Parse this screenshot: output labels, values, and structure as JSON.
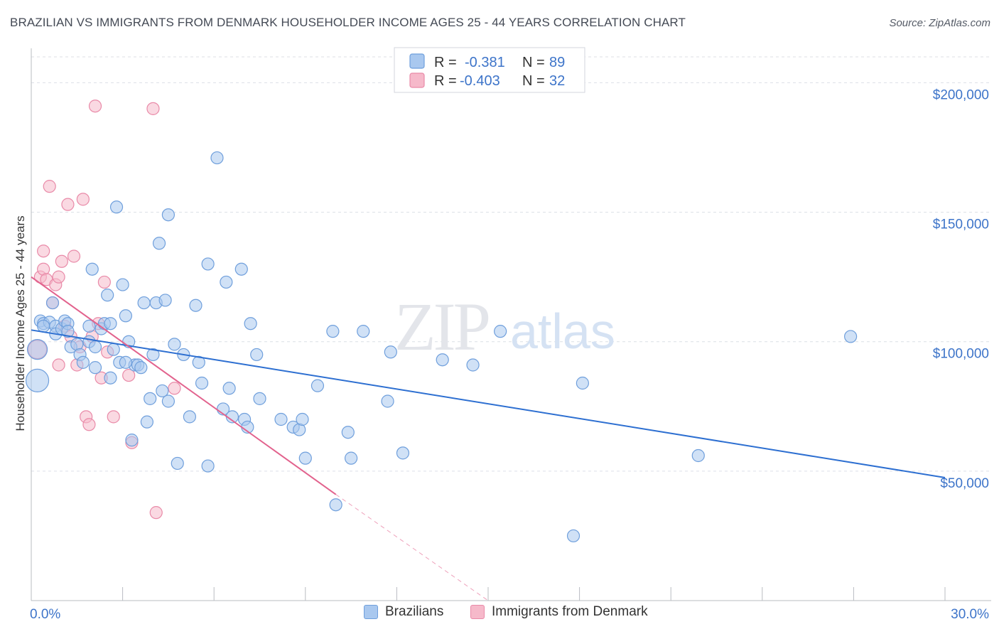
{
  "header": {
    "title": "BRAZILIAN VS IMMIGRANTS FROM DENMARK HOUSEHOLDER INCOME AGES 25 - 44 YEARS CORRELATION CHART",
    "source": "Source: ZipAtlas.com"
  },
  "watermark": {
    "zip": "ZIP",
    "atlas": "atlas"
  },
  "colors": {
    "blue_fill": "#a9c8ef",
    "blue_stroke": "#6f9fdc",
    "blue_line": "#2d6fd1",
    "pink_fill": "#f6b9ca",
    "pink_stroke": "#e98aa8",
    "pink_line": "#e2628d",
    "label_blue": "#3d74c9",
    "grid": "#dcdfe6"
  },
  "legend": {
    "rows": [
      {
        "r_label": "R =",
        "r_value": "-0.381",
        "n_label": "N =",
        "n_value": "89"
      },
      {
        "r_label": "R =",
        "r_value": "-0.403",
        "n_label": "N =",
        "n_value": "32"
      }
    ]
  },
  "bottom_legend": {
    "brazilians": "Brazilians",
    "denmark": "Immigrants from Denmark"
  },
  "chart_data": {
    "type": "scatter",
    "title": "BRAZILIAN VS IMMIGRANTS FROM DENMARK HOUSEHOLDER INCOME AGES 25 - 44 YEARS CORRELATION CHART",
    "xlabel": "",
    "ylabel": "Householder Income Ages 25 - 44 years",
    "xlim": [
      0,
      30
    ],
    "ylim": [
      0,
      210000
    ],
    "x_tick_labels": [
      "0.0%",
      "30.0%"
    ],
    "y_ticks": [
      50000,
      100000,
      150000,
      200000
    ],
    "y_tick_labels": [
      "$50,000",
      "$100,000",
      "$150,000",
      "$200,000"
    ],
    "grid": "horizontal",
    "legend_position": "top-center",
    "series": [
      {
        "name": "Brazilians",
        "r": -0.381,
        "n": 89,
        "trend": {
          "x": [
            0,
            30
          ],
          "y": [
            104500,
            47500
          ]
        },
        "points": [
          [
            0.2,
            85000
          ],
          [
            0.3,
            108000
          ],
          [
            0.4,
            107000
          ],
          [
            0.6,
            107500
          ],
          [
            0.7,
            115000
          ],
          [
            0.8,
            106000
          ],
          [
            0.8,
            103000
          ],
          [
            1.0,
            105000
          ],
          [
            1.1,
            108000
          ],
          [
            1.2,
            107000
          ],
          [
            1.3,
            98000
          ],
          [
            1.5,
            99000
          ],
          [
            1.6,
            95000
          ],
          [
            1.7,
            92000
          ],
          [
            1.9,
            100000
          ],
          [
            1.9,
            106000
          ],
          [
            2.0,
            128000
          ],
          [
            2.1,
            98000
          ],
          [
            2.1,
            90000
          ],
          [
            2.3,
            105000
          ],
          [
            2.4,
            107000
          ],
          [
            2.5,
            118000
          ],
          [
            2.6,
            86000
          ],
          [
            2.7,
            97000
          ],
          [
            2.8,
            152000
          ],
          [
            2.9,
            92000
          ],
          [
            3.0,
            122000
          ],
          [
            3.1,
            110000
          ],
          [
            3.2,
            100000
          ],
          [
            3.3,
            62000
          ],
          [
            3.4,
            91000
          ],
          [
            3.5,
            91000
          ],
          [
            3.6,
            90000
          ],
          [
            3.7,
            115000
          ],
          [
            3.8,
            69000
          ],
          [
            3.9,
            78000
          ],
          [
            4.0,
            95000
          ],
          [
            4.1,
            115000
          ],
          [
            4.2,
            138000
          ],
          [
            4.3,
            81000
          ],
          [
            4.4,
            116000
          ],
          [
            4.5,
            149000
          ],
          [
            4.5,
            77000
          ],
          [
            4.7,
            99000
          ],
          [
            4.8,
            53000
          ],
          [
            5.0,
            95000
          ],
          [
            5.2,
            71000
          ],
          [
            5.4,
            114000
          ],
          [
            5.5,
            92000
          ],
          [
            5.6,
            84000
          ],
          [
            5.8,
            130000
          ],
          [
            5.8,
            52000
          ],
          [
            6.1,
            171000
          ],
          [
            6.3,
            74000
          ],
          [
            6.4,
            123000
          ],
          [
            6.5,
            82000
          ],
          [
            6.6,
            71000
          ],
          [
            6.9,
            128000
          ],
          [
            7.0,
            70000
          ],
          [
            7.1,
            67000
          ],
          [
            7.2,
            107000
          ],
          [
            7.4,
            95000
          ],
          [
            7.5,
            78000
          ],
          [
            8.2,
            70000
          ],
          [
            8.6,
            67000
          ],
          [
            8.8,
            66000
          ],
          [
            8.9,
            70000
          ],
          [
            9.0,
            55000
          ],
          [
            9.4,
            83000
          ],
          [
            9.9,
            104000
          ],
          [
            10.0,
            37000
          ],
          [
            10.4,
            65000
          ],
          [
            10.5,
            55000
          ],
          [
            10.9,
            104000
          ],
          [
            11.7,
            77000
          ],
          [
            11.8,
            96000
          ],
          [
            12.2,
            57000
          ],
          [
            13.5,
            93000
          ],
          [
            14.5,
            91000
          ],
          [
            15.4,
            104000
          ],
          [
            17.8,
            25000
          ],
          [
            18.1,
            84000
          ],
          [
            21.9,
            56000
          ],
          [
            26.9,
            102000
          ],
          [
            0.2,
            97000
          ],
          [
            1.2,
            104000
          ],
          [
            2.6,
            107000
          ],
          [
            3.1,
            92000
          ],
          [
            0.4,
            106000
          ]
        ]
      },
      {
        "name": "Immigrants from Denmark",
        "r": -0.403,
        "n": 32,
        "trend": {
          "x": [
            0,
            10
          ],
          "y": [
            125000,
            41000
          ]
        },
        "trend_dashed": {
          "x": [
            10,
            15
          ],
          "y": [
            41000,
            0
          ]
        },
        "points": [
          [
            0.2,
            97000
          ],
          [
            0.3,
            125000
          ],
          [
            0.4,
            128000
          ],
          [
            0.4,
            135000
          ],
          [
            0.5,
            124000
          ],
          [
            0.6,
            160000
          ],
          [
            0.7,
            115000
          ],
          [
            0.8,
            122000
          ],
          [
            0.9,
            125000
          ],
          [
            0.9,
            91000
          ],
          [
            1.0,
            131000
          ],
          [
            1.1,
            106000
          ],
          [
            1.2,
            153000
          ],
          [
            1.3,
            102000
          ],
          [
            1.4,
            133000
          ],
          [
            1.5,
            91000
          ],
          [
            1.6,
            98000
          ],
          [
            1.7,
            155000
          ],
          [
            1.8,
            71000
          ],
          [
            1.9,
            68000
          ],
          [
            2.0,
            102000
          ],
          [
            2.2,
            107000
          ],
          [
            2.3,
            86000
          ],
          [
            2.4,
            123000
          ],
          [
            2.5,
            96000
          ],
          [
            2.7,
            71000
          ],
          [
            3.2,
            87000
          ],
          [
            3.3,
            61000
          ],
          [
            4.0,
            190000
          ],
          [
            4.1,
            34000
          ],
          [
            4.7,
            82000
          ],
          [
            2.1,
            191000
          ]
        ]
      }
    ]
  }
}
